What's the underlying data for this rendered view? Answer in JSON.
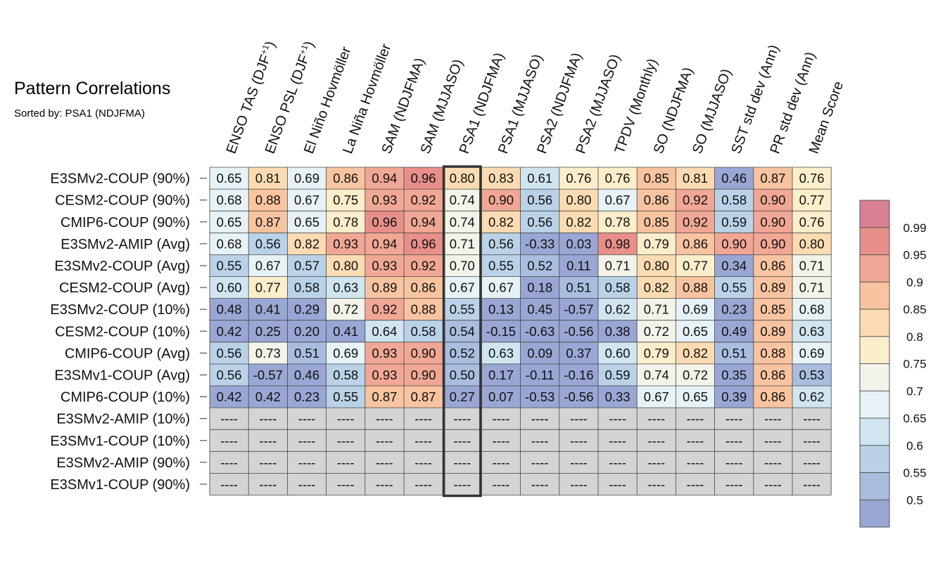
{
  "title": "Pattern Correlations",
  "subtitle": "Sorted by: PSA1 (NDJFMA)",
  "chart_data": {
    "type": "heatmap",
    "title": "Pattern Correlations",
    "subtitle": "Sorted by: PSA1 (NDJFMA)",
    "columns": [
      "ENSO TAS (DJF+1)",
      "ENSO PSL (DJF+1)",
      "El Niño Hovmöller",
      "La Niña Hovmöller",
      "SAM (NDJFMA)",
      "SAM (MJJASO)",
      "PSA1 (NDJFMA)",
      "PSA1 (MJJASO)",
      "PSA2 (NDJFMA)",
      "PSA2 (MJJASO)",
      "TPDV (Monthly)",
      "SO (NDJFMA)",
      "SO (MJJASO)",
      "SST std dev (Ann)",
      "PR std dev (Ann)",
      "Mean Score"
    ],
    "column_superscript": [
      "+1",
      "+1",
      "",
      "",
      "",
      "",
      "",
      "",
      "",
      "",
      "",
      "",
      "",
      "",
      "",
      ""
    ],
    "rows": [
      "E3SMv2-COUP (90%)",
      "CESM2-COUP (90%)",
      "CMIP6-COUP (90%)",
      "E3SMv2-AMIP (Avg)",
      "E3SMv2-COUP (Avg)",
      "CESM2-COUP (Avg)",
      "E3SMv2-COUP (10%)",
      "CESM2-COUP (10%)",
      "CMIP6-COUP (Avg)",
      "E3SMv1-COUP (Avg)",
      "CMIP6-COUP (10%)",
      "E3SMv2-AMIP (10%)",
      "E3SMv1-COUP (10%)",
      "E3SMv2-AMIP (90%)",
      "E3SMv1-COUP (90%)"
    ],
    "values": [
      [
        "0.65",
        "0.81",
        "0.69",
        "0.86",
        "0.94",
        "0.96",
        "0.80",
        "0.83",
        "0.61",
        "0.76",
        "0.76",
        "0.85",
        "0.81",
        "0.46",
        "0.87",
        "0.76"
      ],
      [
        "0.68",
        "0.88",
        "0.67",
        "0.75",
        "0.93",
        "0.92",
        "0.74",
        "0.90",
        "0.56",
        "0.80",
        "0.67",
        "0.86",
        "0.92",
        "0.58",
        "0.90",
        "0.77"
      ],
      [
        "0.65",
        "0.87",
        "0.65",
        "0.78",
        "0.96",
        "0.94",
        "0.74",
        "0.82",
        "0.56",
        "0.82",
        "0.78",
        "0.85",
        "0.92",
        "0.59",
        "0.90",
        "0.76"
      ],
      [
        "0.68",
        "0.56",
        "0.82",
        "0.93",
        "0.94",
        "0.96",
        "0.71",
        "0.56",
        "-0.33",
        "0.03",
        "0.98",
        "0.79",
        "0.86",
        "0.90",
        "0.90",
        "0.80"
      ],
      [
        "0.55",
        "0.67",
        "0.57",
        "0.80",
        "0.93",
        "0.92",
        "0.70",
        "0.55",
        "0.52",
        "0.11",
        "0.71",
        "0.80",
        "0.77",
        "0.34",
        "0.86",
        "0.71"
      ],
      [
        "0.60",
        "0.77",
        "0.58",
        "0.63",
        "0.89",
        "0.86",
        "0.67",
        "0.67",
        "0.18",
        "0.51",
        "0.58",
        "0.82",
        "0.88",
        "0.55",
        "0.89",
        "0.71"
      ],
      [
        "0.48",
        "0.41",
        "0.29",
        "0.72",
        "0.92",
        "0.88",
        "0.55",
        "0.13",
        "0.45",
        "-0.57",
        "0.62",
        "0.71",
        "0.69",
        "0.23",
        "0.85",
        "0.68"
      ],
      [
        "0.42",
        "0.25",
        "0.20",
        "0.41",
        "0.64",
        "0.58",
        "0.54",
        "-0.15",
        "-0.63",
        "-0.56",
        "0.38",
        "0.72",
        "0.65",
        "0.49",
        "0.89",
        "0.63"
      ],
      [
        "0.56",
        "0.73",
        "0.51",
        "0.69",
        "0.93",
        "0.90",
        "0.52",
        "0.63",
        "0.09",
        "0.37",
        "0.60",
        "0.79",
        "0.82",
        "0.51",
        "0.88",
        "0.69"
      ],
      [
        "0.56",
        "-0.57",
        "0.46",
        "0.58",
        "0.93",
        "0.90",
        "0.50",
        "0.17",
        "-0.11",
        "-0.16",
        "0.59",
        "0.74",
        "0.72",
        "0.35",
        "0.86",
        "0.53"
      ],
      [
        "0.42",
        "0.42",
        "0.23",
        "0.55",
        "0.87",
        "0.87",
        "0.27",
        "0.07",
        "-0.53",
        "-0.56",
        "0.33",
        "0.67",
        "0.65",
        "0.39",
        "0.86",
        "0.62"
      ],
      [
        "----",
        "----",
        "----",
        "----",
        "----",
        "----",
        "----",
        "----",
        "----",
        "----",
        "----",
        "----",
        "----",
        "----",
        "----",
        "----"
      ],
      [
        "----",
        "----",
        "----",
        "----",
        "----",
        "----",
        "----",
        "----",
        "----",
        "----",
        "----",
        "----",
        "----",
        "----",
        "----",
        "----"
      ],
      [
        "----",
        "----",
        "----",
        "----",
        "----",
        "----",
        "----",
        "----",
        "----",
        "----",
        "----",
        "----",
        "----",
        "----",
        "----",
        "----"
      ],
      [
        "----",
        "----",
        "----",
        "----",
        "----",
        "----",
        "----",
        "----",
        "----",
        "----",
        "----",
        "----",
        "----",
        "----",
        "----",
        "----"
      ]
    ],
    "highlighted_column": "PSA1 (NDJFMA)",
    "missing_color": "#d4d4d4",
    "colorbar": {
      "tick_labels": [
        "0.99",
        "0.95",
        "0.9",
        "0.85",
        "0.8",
        "0.75",
        "0.7",
        "0.65",
        "0.6",
        "0.55",
        "0.5"
      ],
      "bounds": [
        0.5,
        0.55,
        0.6,
        0.65,
        0.7,
        0.75,
        0.8,
        0.85,
        0.9,
        0.95,
        0.99
      ],
      "colors": [
        "#9aa6d3",
        "#a9bddf",
        "#bad2e7",
        "#d0e5ef",
        "#e7f2f6",
        "#f3f3ea",
        "#fbeecb",
        "#fbdcb2",
        "#f8c4a0",
        "#f1a795",
        "#e88f8a",
        "#d97f93"
      ],
      "position": "right"
    }
  }
}
